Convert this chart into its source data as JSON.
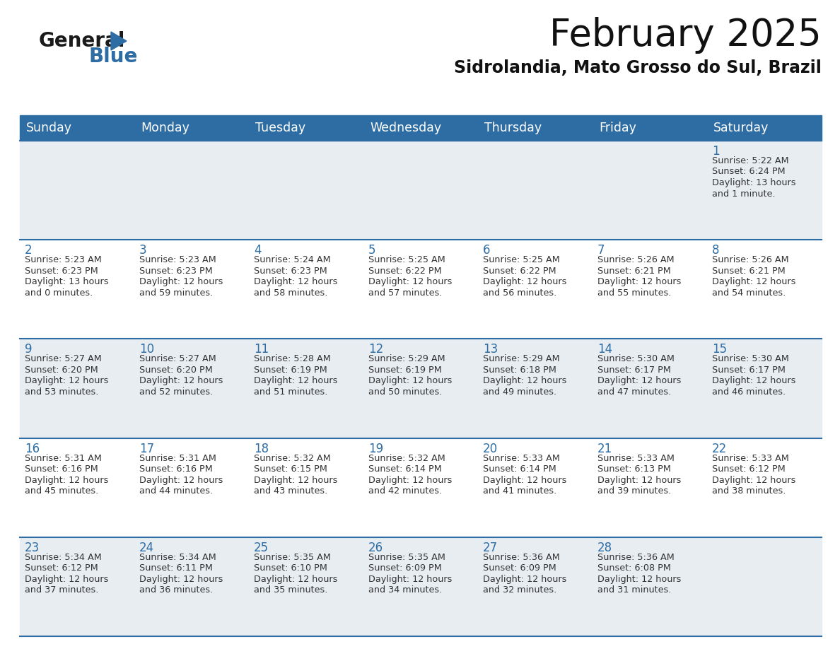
{
  "title": "February 2025",
  "subtitle": "Sidrolandia, Mato Grosso do Sul, Brazil",
  "days_of_week": [
    "Sunday",
    "Monday",
    "Tuesday",
    "Wednesday",
    "Thursday",
    "Friday",
    "Saturday"
  ],
  "header_bg": "#2e6da4",
  "header_text": "#ffffff",
  "row_bg_gray": "#e8edf2",
  "row_bg_white": "#ffffff",
  "row_line_color": "#2e6da4",
  "day_number_color": "#2e6da4",
  "text_color": "#333333",
  "calendar_data": [
    [
      null,
      null,
      null,
      null,
      null,
      null,
      {
        "day": "1",
        "sunrise": "5:22 AM",
        "sunset": "6:24 PM",
        "daylight1": "Daylight: 13 hours",
        "daylight2": "and 1 minute."
      }
    ],
    [
      {
        "day": "2",
        "sunrise": "5:23 AM",
        "sunset": "6:23 PM",
        "daylight1": "Daylight: 13 hours",
        "daylight2": "and 0 minutes."
      },
      {
        "day": "3",
        "sunrise": "5:23 AM",
        "sunset": "6:23 PM",
        "daylight1": "Daylight: 12 hours",
        "daylight2": "and 59 minutes."
      },
      {
        "day": "4",
        "sunrise": "5:24 AM",
        "sunset": "6:23 PM",
        "daylight1": "Daylight: 12 hours",
        "daylight2": "and 58 minutes."
      },
      {
        "day": "5",
        "sunrise": "5:25 AM",
        "sunset": "6:22 PM",
        "daylight1": "Daylight: 12 hours",
        "daylight2": "and 57 minutes."
      },
      {
        "day": "6",
        "sunrise": "5:25 AM",
        "sunset": "6:22 PM",
        "daylight1": "Daylight: 12 hours",
        "daylight2": "and 56 minutes."
      },
      {
        "day": "7",
        "sunrise": "5:26 AM",
        "sunset": "6:21 PM",
        "daylight1": "Daylight: 12 hours",
        "daylight2": "and 55 minutes."
      },
      {
        "day": "8",
        "sunrise": "5:26 AM",
        "sunset": "6:21 PM",
        "daylight1": "Daylight: 12 hours",
        "daylight2": "and 54 minutes."
      }
    ],
    [
      {
        "day": "9",
        "sunrise": "5:27 AM",
        "sunset": "6:20 PM",
        "daylight1": "Daylight: 12 hours",
        "daylight2": "and 53 minutes."
      },
      {
        "day": "10",
        "sunrise": "5:27 AM",
        "sunset": "6:20 PM",
        "daylight1": "Daylight: 12 hours",
        "daylight2": "and 52 minutes."
      },
      {
        "day": "11",
        "sunrise": "5:28 AM",
        "sunset": "6:19 PM",
        "daylight1": "Daylight: 12 hours",
        "daylight2": "and 51 minutes."
      },
      {
        "day": "12",
        "sunrise": "5:29 AM",
        "sunset": "6:19 PM",
        "daylight1": "Daylight: 12 hours",
        "daylight2": "and 50 minutes."
      },
      {
        "day": "13",
        "sunrise": "5:29 AM",
        "sunset": "6:18 PM",
        "daylight1": "Daylight: 12 hours",
        "daylight2": "and 49 minutes."
      },
      {
        "day": "14",
        "sunrise": "5:30 AM",
        "sunset": "6:17 PM",
        "daylight1": "Daylight: 12 hours",
        "daylight2": "and 47 minutes."
      },
      {
        "day": "15",
        "sunrise": "5:30 AM",
        "sunset": "6:17 PM",
        "daylight1": "Daylight: 12 hours",
        "daylight2": "and 46 minutes."
      }
    ],
    [
      {
        "day": "16",
        "sunrise": "5:31 AM",
        "sunset": "6:16 PM",
        "daylight1": "Daylight: 12 hours",
        "daylight2": "and 45 minutes."
      },
      {
        "day": "17",
        "sunrise": "5:31 AM",
        "sunset": "6:16 PM",
        "daylight1": "Daylight: 12 hours",
        "daylight2": "and 44 minutes."
      },
      {
        "day": "18",
        "sunrise": "5:32 AM",
        "sunset": "6:15 PM",
        "daylight1": "Daylight: 12 hours",
        "daylight2": "and 43 minutes."
      },
      {
        "day": "19",
        "sunrise": "5:32 AM",
        "sunset": "6:14 PM",
        "daylight1": "Daylight: 12 hours",
        "daylight2": "and 42 minutes."
      },
      {
        "day": "20",
        "sunrise": "5:33 AM",
        "sunset": "6:14 PM",
        "daylight1": "Daylight: 12 hours",
        "daylight2": "and 41 minutes."
      },
      {
        "day": "21",
        "sunrise": "5:33 AM",
        "sunset": "6:13 PM",
        "daylight1": "Daylight: 12 hours",
        "daylight2": "and 39 minutes."
      },
      {
        "day": "22",
        "sunrise": "5:33 AM",
        "sunset": "6:12 PM",
        "daylight1": "Daylight: 12 hours",
        "daylight2": "and 38 minutes."
      }
    ],
    [
      {
        "day": "23",
        "sunrise": "5:34 AM",
        "sunset": "6:12 PM",
        "daylight1": "Daylight: 12 hours",
        "daylight2": "and 37 minutes."
      },
      {
        "day": "24",
        "sunrise": "5:34 AM",
        "sunset": "6:11 PM",
        "daylight1": "Daylight: 12 hours",
        "daylight2": "and 36 minutes."
      },
      {
        "day": "25",
        "sunrise": "5:35 AM",
        "sunset": "6:10 PM",
        "daylight1": "Daylight: 12 hours",
        "daylight2": "and 35 minutes."
      },
      {
        "day": "26",
        "sunrise": "5:35 AM",
        "sunset": "6:09 PM",
        "daylight1": "Daylight: 12 hours",
        "daylight2": "and 34 minutes."
      },
      {
        "day": "27",
        "sunrise": "5:36 AM",
        "sunset": "6:09 PM",
        "daylight1": "Daylight: 12 hours",
        "daylight2": "and 32 minutes."
      },
      {
        "day": "28",
        "sunrise": "5:36 AM",
        "sunset": "6:08 PM",
        "daylight1": "Daylight: 12 hours",
        "daylight2": "and 31 minutes."
      },
      null
    ]
  ],
  "row_bg_pattern": [
    1,
    0,
    1,
    0,
    1
  ],
  "figsize": [
    11.88,
    9.18
  ],
  "dpi": 100
}
